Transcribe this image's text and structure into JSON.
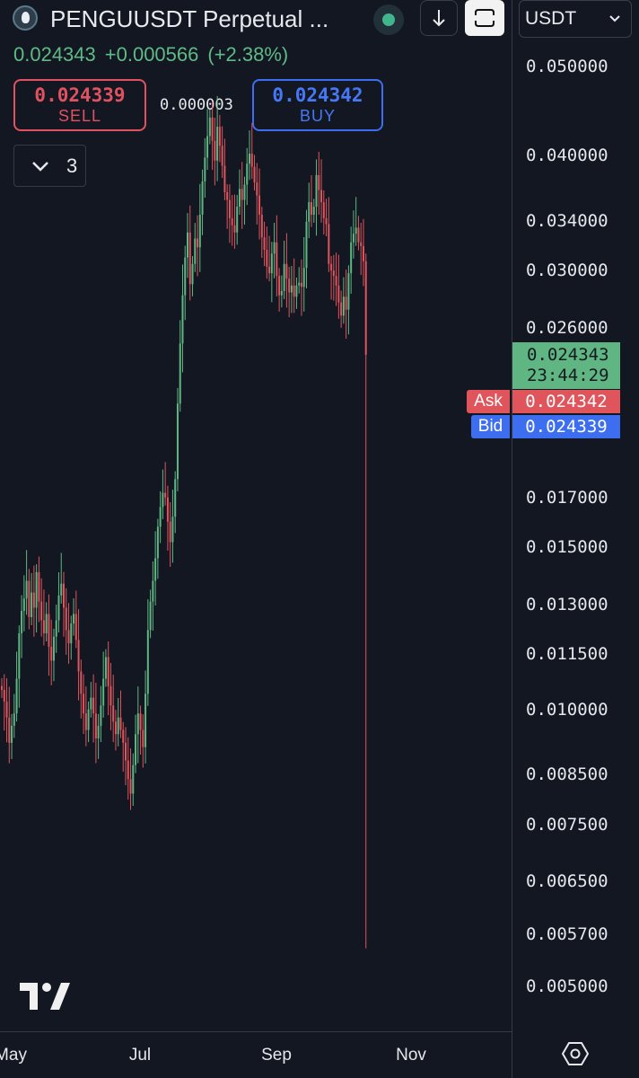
{
  "header": {
    "title": "PENGUUSDT Perpetual ...",
    "currency": "USDT"
  },
  "quote": {
    "last": "0.024343",
    "change": "+0.000566",
    "change_pct": "(+2.38%)"
  },
  "trade": {
    "sell_price": "0.024339",
    "sell_label": "SELL",
    "buy_price": "0.024342",
    "buy_label": "BUY",
    "spread": "0.000003"
  },
  "indicators": {
    "count": "3"
  },
  "price_scale": {
    "last_price": "0.024343",
    "countdown": "23:44:29",
    "ask_label": "Ask",
    "ask_price": "0.024342",
    "bid_label": "Bid",
    "bid_price": "0.024339",
    "ticks": [
      "0.050000",
      "0.040000",
      "0.034000",
      "0.030000",
      "0.026000",
      "0.017000",
      "0.015000",
      "0.013000",
      "0.011500",
      "0.010000",
      "0.008500",
      "0.007500",
      "0.006500",
      "0.005700",
      "0.005000"
    ]
  },
  "time_axis": {
    "ticks": [
      "May",
      "Jul",
      "Sep",
      "Nov"
    ]
  },
  "colors": {
    "up": "#5fb682",
    "down": "#e0545c",
    "ask": "#e0545c",
    "bid": "#3d6ef0",
    "background": "#131722"
  },
  "chart_data": {
    "type": "candlestick",
    "scale": "log",
    "ylim": [
      0.0046,
      0.058
    ],
    "x_labels": [
      "May",
      "Jul",
      "Sep",
      "Nov"
    ],
    "close": [
      0.0105,
      0.0102,
      0.0098,
      0.0092,
      0.0096,
      0.0099,
      0.0108,
      0.0121,
      0.0128,
      0.0132,
      0.0138,
      0.0126,
      0.0134,
      0.0129,
      0.0141,
      0.0131,
      0.0125,
      0.0121,
      0.0127,
      0.0117,
      0.0113,
      0.012,
      0.0125,
      0.0133,
      0.0137,
      0.0129,
      0.0122,
      0.0118,
      0.0124,
      0.0127,
      0.0119,
      0.011,
      0.0104,
      0.0099,
      0.0095,
      0.01,
      0.0103,
      0.0099,
      0.0093,
      0.0096,
      0.0101,
      0.0108,
      0.0114,
      0.0106,
      0.0101,
      0.0097,
      0.0094,
      0.0098,
      0.0095,
      0.0092,
      0.0088,
      0.0084,
      0.0081,
      0.0087,
      0.0094,
      0.0099,
      0.0095,
      0.0091,
      0.0104,
      0.0122,
      0.0131,
      0.0138,
      0.0146,
      0.0158,
      0.0166,
      0.0172,
      0.017,
      0.016,
      0.0152,
      0.0162,
      0.0178,
      0.0215,
      0.025,
      0.0282,
      0.031,
      0.033,
      0.029,
      0.0305,
      0.0325,
      0.0318,
      0.0345,
      0.0375,
      0.0398,
      0.042,
      0.044,
      0.0415,
      0.0395,
      0.043,
      0.041,
      0.039,
      0.0365,
      0.0358,
      0.0342,
      0.0336,
      0.033,
      0.0352,
      0.0368,
      0.0358,
      0.0372,
      0.0392,
      0.0402,
      0.0389,
      0.0374,
      0.0362,
      0.0345,
      0.0326,
      0.0316,
      0.0303,
      0.0298,
      0.0313,
      0.0322,
      0.0296,
      0.0282,
      0.0285,
      0.0305,
      0.0294,
      0.0284,
      0.0289,
      0.0281,
      0.0289,
      0.0291,
      0.0288,
      0.0302,
      0.0339,
      0.0356,
      0.0345,
      0.0352,
      0.0381,
      0.0367,
      0.0356,
      0.0342,
      0.0337,
      0.0305,
      0.03,
      0.0296,
      0.0289,
      0.0277,
      0.0268,
      0.0281,
      0.0272,
      0.0298,
      0.0322,
      0.0329,
      0.0334,
      0.0322,
      0.0319,
      0.0307,
      0.0243
    ]
  }
}
